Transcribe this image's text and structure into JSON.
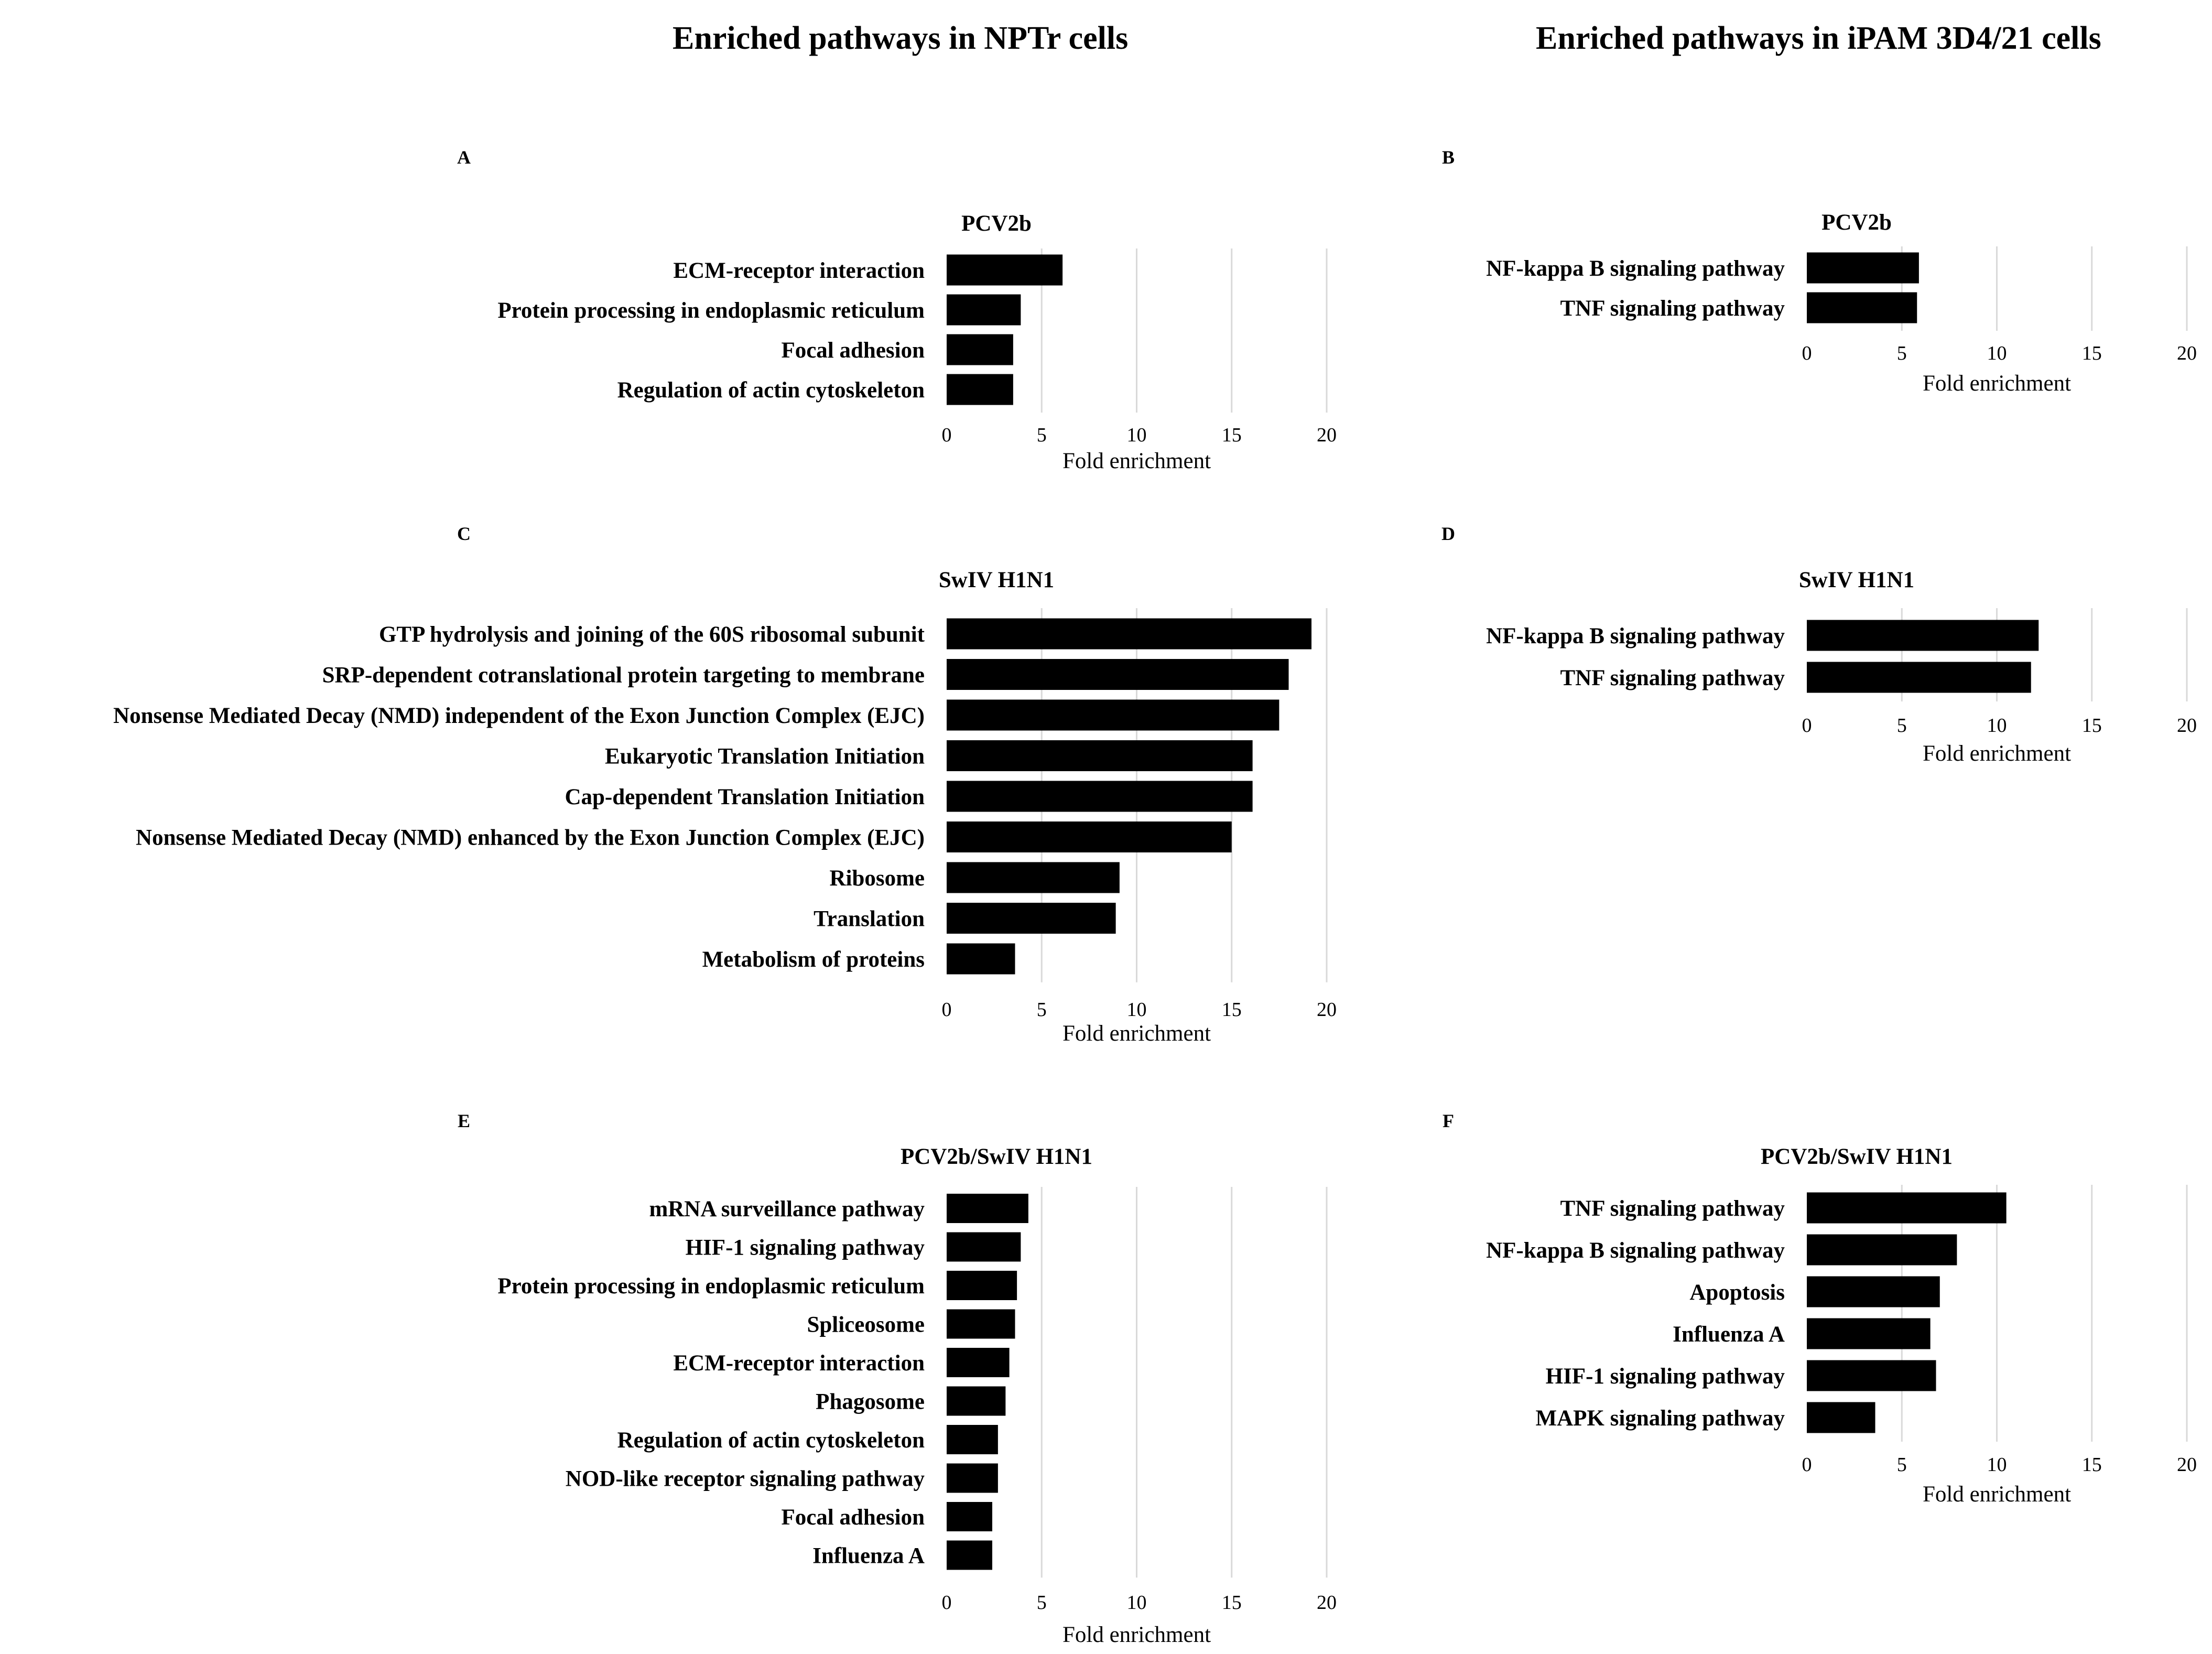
{
  "headings": {
    "left": "Enriched pathways in NPTr cells",
    "right": "Enriched pathways in iPAM 3D4/21 cells"
  },
  "colors": {
    "bar": "#000000",
    "grid": "#d9d9d9",
    "text": "#000000"
  },
  "chart_data": [
    {
      "type": "bar",
      "orientation": "horizontal",
      "panel": "A",
      "title": "PCV2b",
      "xlabel": "Fold enrichment",
      "xlim": [
        0,
        20
      ],
      "xticks": [
        0,
        5,
        10,
        15,
        20
      ],
      "categories": [
        "ECM-receptor interaction",
        "Protein processing in endoplasmic reticulum",
        "Focal adhesion",
        "Regulation of actin cytoskeleton"
      ],
      "values": [
        6.1,
        3.9,
        3.5,
        3.5
      ]
    },
    {
      "type": "bar",
      "orientation": "horizontal",
      "panel": "B",
      "title": "PCV2b",
      "xlabel": "Fold enrichment",
      "xlim": [
        0,
        20
      ],
      "xticks": [
        0,
        5,
        10,
        15,
        20
      ],
      "categories": [
        "NF-kappa B signaling pathway",
        "TNF signaling pathway"
      ],
      "values": [
        5.9,
        5.8
      ]
    },
    {
      "type": "bar",
      "orientation": "horizontal",
      "panel": "C",
      "title": "SwIV H1N1",
      "xlabel": "Fold enrichment",
      "xlim": [
        0,
        20
      ],
      "xticks": [
        0,
        5,
        10,
        15,
        20
      ],
      "categories": [
        "GTP hydrolysis and joining of the 60S ribosomal subunit",
        "SRP-dependent cotranslational protein targeting to membrane",
        "Nonsense Mediated Decay (NMD) independent of the Exon Junction Complex (EJC)",
        "Eukaryotic Translation Initiation",
        "Cap-dependent Translation Initiation",
        "Nonsense Mediated Decay (NMD) enhanced by the Exon Junction Complex (EJC)",
        "Ribosome",
        "Translation",
        "Metabolism of proteins"
      ],
      "values": [
        19.2,
        18.0,
        17.5,
        16.1,
        16.1,
        15.0,
        9.1,
        8.9,
        3.6
      ]
    },
    {
      "type": "bar",
      "orientation": "horizontal",
      "panel": "D",
      "title": "SwIV H1N1",
      "xlabel": "Fold enrichment",
      "xlim": [
        0,
        20
      ],
      "xticks": [
        0,
        5,
        10,
        15,
        20
      ],
      "categories": [
        "NF-kappa B signaling pathway",
        "TNF signaling pathway"
      ],
      "values": [
        12.2,
        11.8
      ]
    },
    {
      "type": "bar",
      "orientation": "horizontal",
      "panel": "E",
      "title": "PCV2b/SwIV H1N1",
      "xlabel": "Fold enrichment",
      "xlim": [
        0,
        20
      ],
      "xticks": [
        0,
        5,
        10,
        15,
        20
      ],
      "categories": [
        "mRNA surveillance pathway",
        "HIF-1 signaling pathway",
        "Protein processing in endoplasmic reticulum",
        "Spliceosome",
        "ECM-receptor interaction",
        "Phagosome",
        "Regulation of actin cytoskeleton",
        "NOD-like receptor signaling pathway",
        "Focal adhesion",
        "Influenza A"
      ],
      "values": [
        4.3,
        3.9,
        3.7,
        3.6,
        3.3,
        3.1,
        2.7,
        2.7,
        2.4,
        2.4
      ]
    },
    {
      "type": "bar",
      "orientation": "horizontal",
      "panel": "F",
      "title": "PCV2b/SwIV H1N1",
      "xlabel": "Fold enrichment",
      "xlim": [
        0,
        20
      ],
      "xticks": [
        0,
        5,
        10,
        15,
        20
      ],
      "categories": [
        "TNF signaling pathway",
        "NF-kappa B signaling pathway",
        "Apoptosis",
        "Influenza A",
        "HIF-1 signaling pathway",
        "MAPK signaling pathway"
      ],
      "values": [
        10.5,
        7.9,
        7.0,
        6.5,
        6.8,
        3.6
      ]
    }
  ]
}
